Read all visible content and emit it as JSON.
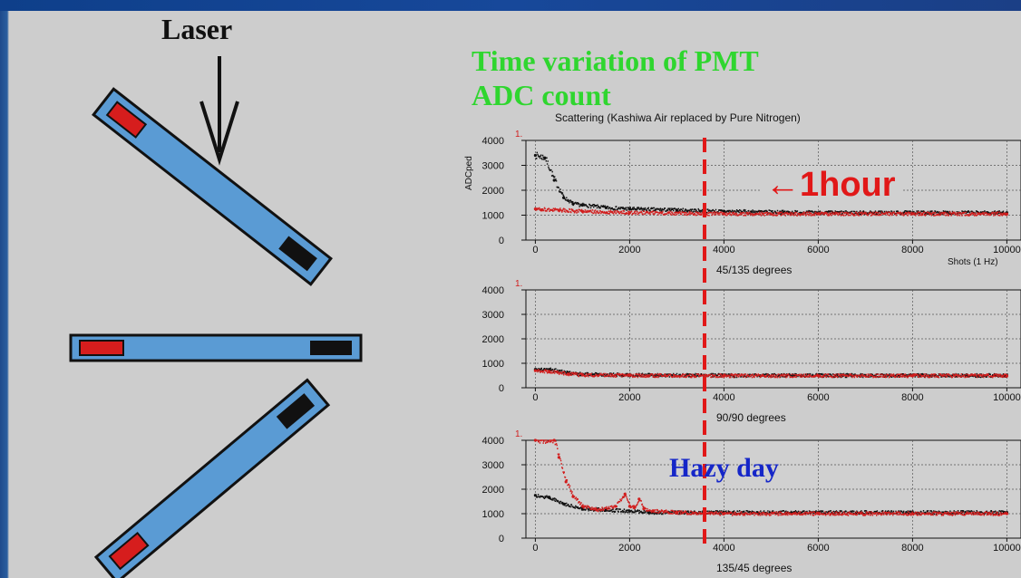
{
  "slide": {
    "laser_label": "Laser",
    "title_lines": [
      "Time variation of PMT",
      "ADC count"
    ],
    "scattering_title": "Scattering (Kashiwa Air replaced by Pure Nitrogen)",
    "annotation_1hour": "1hour",
    "annotation_hazy": "Hazy day",
    "colors": {
      "background": "#cdcdcd",
      "title_green": "#2fd62f",
      "red_series": "#d11d1d",
      "black_series": "#111111",
      "annotation_red": "#e11818",
      "annotation_blue": "#1526c8",
      "bar_blue": "#5a9bd4"
    }
  },
  "diagram": {
    "bars": [
      {
        "name": "tilted-45",
        "description_icon": "scintillator-bar-icon"
      },
      {
        "name": "horizontal",
        "description_icon": "scintillator-bar-icon"
      },
      {
        "name": "tilted-135",
        "description_icon": "scintillator-bar-icon"
      }
    ],
    "arrow_icon": "down-arrow-icon"
  },
  "chart_data": [
    {
      "type": "scatter",
      "title": "Scattering (Kashiwa Air replaced by Pure Nitrogen)",
      "xlabel": "Shots (1 Hz)",
      "ylabel": "ADCped",
      "panel_marker": "1.",
      "xlim": [
        -200,
        10300
      ],
      "ylim": [
        0,
        4000
      ],
      "x_ticks": [
        0,
        2000,
        4000,
        6000,
        8000,
        10000
      ],
      "x_tick_labels": [
        "0",
        "2000",
        "4000",
        "6000",
        "8000",
        "10000"
      ],
      "y_ticks": [
        0,
        1000,
        2000,
        3000,
        4000
      ],
      "y_tick_labels": [
        "0",
        "1000",
        "2000",
        "3000",
        "4000"
      ],
      "grid": true,
      "caption": "45/135 degrees",
      "series": [
        {
          "color": "#111111",
          "x": [
            0,
            200,
            400,
            600,
            800,
            1000,
            1500,
            2000,
            3000,
            4000,
            6000,
            8000,
            10000
          ],
          "y": [
            3400,
            3300,
            2400,
            1700,
            1450,
            1400,
            1300,
            1250,
            1200,
            1150,
            1100,
            1100,
            1100
          ]
        },
        {
          "color": "#d11d1d",
          "x": [
            0,
            500,
            1000,
            2000,
            4000,
            6000,
            8000,
            10000
          ],
          "y": [
            1250,
            1200,
            1150,
            1100,
            1050,
            1050,
            1050,
            1050
          ]
        }
      ]
    },
    {
      "type": "scatter",
      "xlabel": "",
      "ylabel": "",
      "panel_marker": "1.",
      "xlim": [
        -200,
        10300
      ],
      "ylim": [
        0,
        4000
      ],
      "x_ticks": [
        0,
        2000,
        4000,
        6000,
        8000,
        10000
      ],
      "x_tick_labels": [
        "0",
        "2000",
        "4000",
        "6000",
        "8000",
        "10000"
      ],
      "y_ticks": [
        0,
        1000,
        2000,
        3000,
        4000
      ],
      "y_tick_labels": [
        "0",
        "1000",
        "2000",
        "3000",
        "4000"
      ],
      "grid": true,
      "caption": "90/90 degrees",
      "series": [
        {
          "color": "#111111",
          "x": [
            0,
            300,
            700,
            1000,
            2000,
            4000,
            6000,
            8000,
            10000
          ],
          "y": [
            750,
            750,
            600,
            550,
            520,
            500,
            500,
            500,
            500
          ]
        },
        {
          "color": "#d11d1d",
          "x": [
            0,
            300,
            700,
            1000,
            2000,
            4000,
            6000,
            8000,
            10000
          ],
          "y": [
            700,
            650,
            560,
            520,
            500,
            490,
            490,
            490,
            490
          ]
        }
      ]
    },
    {
      "type": "scatter",
      "xlabel": "",
      "ylabel": "",
      "panel_marker": "1.",
      "xlim": [
        -200,
        10300
      ],
      "ylim": [
        0,
        4000
      ],
      "x_ticks": [
        0,
        2000,
        4000,
        6000,
        8000,
        10000
      ],
      "x_tick_labels": [
        "0",
        "2000",
        "4000",
        "6000",
        "8000",
        "10000"
      ],
      "y_ticks": [
        0,
        1000,
        2000,
        3000,
        4000
      ],
      "y_tick_labels": [
        "0",
        "1000",
        "2000",
        "3000",
        "4000"
      ],
      "grid": true,
      "caption": "135/45 degrees",
      "series": [
        {
          "color": "#111111",
          "x": [
            0,
            300,
            600,
            1000,
            1500,
            2000,
            2400,
            3000,
            4000,
            6000,
            8000,
            10000
          ],
          "y": [
            1750,
            1650,
            1400,
            1200,
            1150,
            1100,
            1050,
            1050,
            1050,
            1050,
            1050,
            1050
          ]
        },
        {
          "color": "#d11d1d",
          "x": [
            0,
            400,
            500,
            650,
            800,
            1000,
            1300,
            1700,
            1900,
            2000,
            2100,
            2200,
            2300,
            2500,
            3000,
            4000,
            6000,
            8000,
            10000
          ],
          "y": [
            4000,
            4000,
            3300,
            2300,
            1700,
            1300,
            1150,
            1300,
            1800,
            1300,
            1250,
            1600,
            1200,
            1100,
            1050,
            1000,
            1000,
            1000,
            1000
          ]
        }
      ]
    }
  ]
}
